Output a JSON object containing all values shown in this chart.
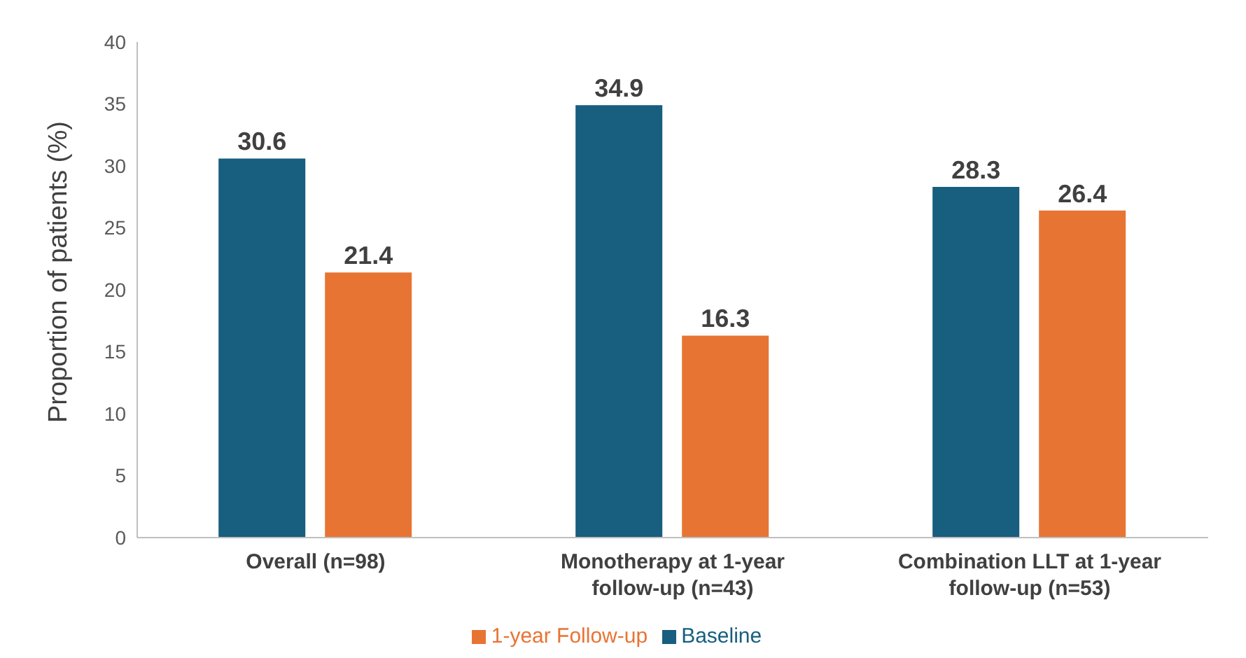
{
  "chart_data": {
    "type": "bar",
    "ylabel": "Proportion of patients (%)",
    "categories": [
      "Overall (n=98)",
      "Monotherapy at 1-year follow-up (n=43)",
      "Combination LLT at 1-year follow-up (n=53)"
    ],
    "series": [
      {
        "name": "Baseline",
        "color": "#175e7f",
        "values": [
          30.6,
          34.9,
          28.3
        ]
      },
      {
        "name": "1-year Follow-up",
        "color": "#e87434",
        "values": [
          21.4,
          16.3,
          26.4
        ]
      }
    ],
    "ylim": [
      0,
      40
    ],
    "yticks": [
      0,
      5,
      10,
      15,
      20,
      25,
      30,
      35,
      40
    ],
    "grid": false,
    "legend": "bottom",
    "data_labels": true
  }
}
